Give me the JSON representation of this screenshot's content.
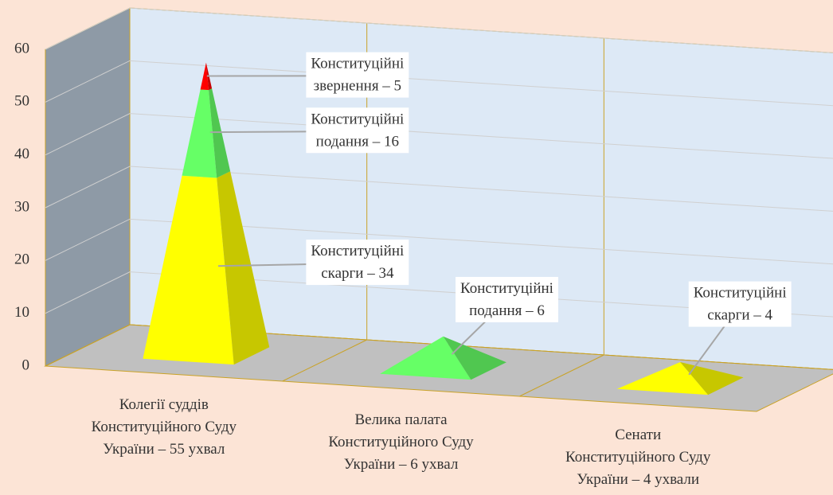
{
  "chart_data": {
    "type": "pyramid3d",
    "categories": [
      [
        "Колегії суддів",
        "Конституційного Суду",
        "України – 55 ухвал"
      ],
      [
        "Велика палата",
        "Конституційного Суду",
        "України – 6 ухвал"
      ],
      [
        "Сенати",
        "Конституційного Суду",
        "України – 4 ухвали"
      ]
    ],
    "series": [
      {
        "color": "#ffff00",
        "values": [
          34,
          0,
          4
        ],
        "value_labels": [
          [
            "Конституційні",
            "скарги – 34"
          ],
          null,
          [
            "Конституційні",
            "скарги – 4"
          ]
        ]
      },
      {
        "color": "#66ff66",
        "values": [
          16,
          6,
          0
        ],
        "value_labels": [
          [
            "Конституційні",
            "подання – 16"
          ],
          [
            "Конституційні",
            "подання – 6"
          ],
          null
        ]
      },
      {
        "color": "#ff0000",
        "values": [
          5,
          0,
          0
        ],
        "value_labels": [
          [
            "Конституційні",
            "звернення – 5"
          ],
          null,
          null
        ]
      }
    ],
    "ylim": [
      0,
      60
    ],
    "yticks": [
      0,
      10,
      20,
      30,
      40,
      50,
      60
    ],
    "grid": true
  }
}
